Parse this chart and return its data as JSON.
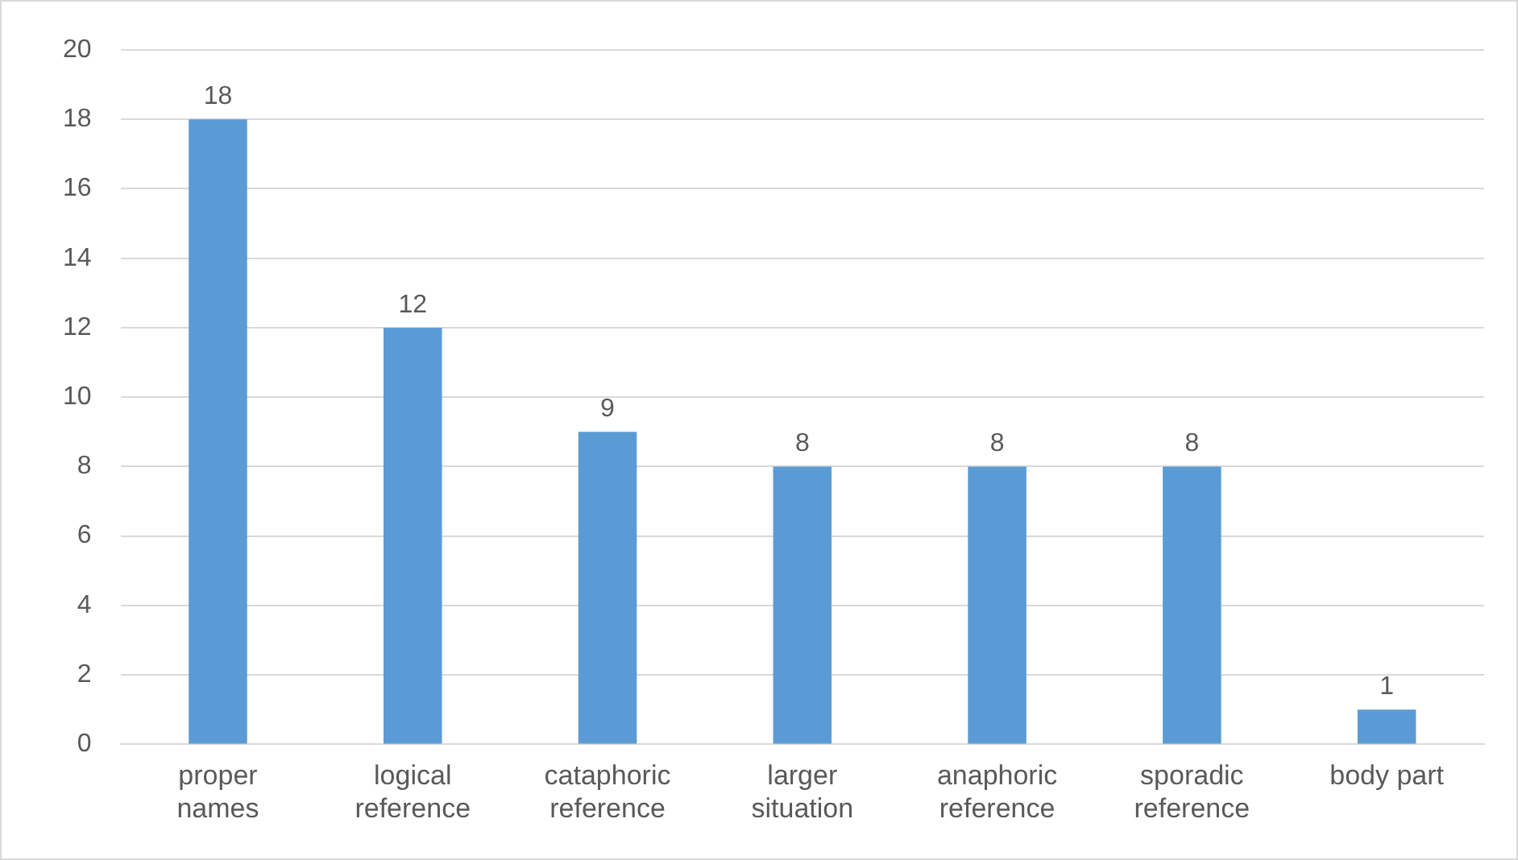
{
  "chart_data": {
    "type": "bar",
    "categories": [
      "proper names",
      "logical reference",
      "cataphoric reference",
      "larger situation",
      "anaphoric reference",
      "sporadic reference",
      "body part"
    ],
    "values": [
      18,
      12,
      9,
      8,
      8,
      8,
      1
    ],
    "color": "#5b9bd5",
    "ylim": [
      0,
      20
    ],
    "yticks": [
      0,
      2,
      4,
      6,
      8,
      10,
      12,
      14,
      16,
      18,
      20
    ],
    "grid": "y",
    "data_labels": true,
    "legend": false
  }
}
